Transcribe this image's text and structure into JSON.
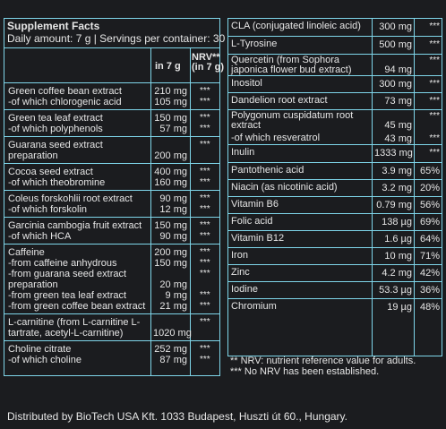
{
  "left": {
    "title": "Supplement Facts",
    "serving": "Daily amount: 7 g | Servings per container: 30",
    "col_amount": "in 7 g",
    "col_nrv": "NRV** (in 7 g)",
    "groups": [
      {
        "rows": [
          [
            "Green coffee bean extract",
            "210 mg",
            "***"
          ],
          [
            "-of which chlorogenic acid",
            "105 mg",
            "***"
          ]
        ]
      },
      {
        "rows": [
          [
            "Green tea leaf extract",
            "150 mg",
            "***"
          ],
          [
            "-of which polyphenols",
            "57 mg",
            "***"
          ]
        ]
      },
      {
        "rows": [
          [
            "Guarana seed extract preparation",
            "200 mg",
            "***"
          ]
        ]
      },
      {
        "rows": [
          [
            "Cocoa seed extract",
            "400 mg",
            "***"
          ],
          [
            "-of which theobromine",
            "160 mg",
            "***"
          ]
        ]
      },
      {
        "rows": [
          [
            "Coleus forskohlii root extract",
            "90 mg",
            "***"
          ],
          [
            "-of which forskolin",
            "12 mg",
            "***"
          ]
        ]
      },
      {
        "rows": [
          [
            "Garcinia cambogia fruit extract",
            "150 mg",
            "***"
          ],
          [
            "-of which HCA",
            "90 mg",
            "***"
          ]
        ]
      },
      {
        "rows": [
          [
            "Caffeine",
            "200 mg",
            "***"
          ],
          [
            "-from caffeine anhydrous",
            "150 mg",
            "***"
          ],
          [
            "-from guarana seed extract preparation",
            "20 mg",
            "***"
          ],
          [
            "-from green tea leaf extract",
            "9 mg",
            "***"
          ],
          [
            "-from green coffee bean extract",
            "21 mg",
            "***"
          ]
        ]
      },
      {
        "rows": [
          [
            "L-carnitine (from L-carnitine L-tartrate, acetyl-L-carnitine)",
            "1020 mg",
            "***"
          ]
        ]
      },
      {
        "rows": [
          [
            "Choline citrate",
            "252 mg",
            "***"
          ],
          [
            "-of which choline",
            "87 mg",
            "***"
          ]
        ]
      }
    ]
  },
  "right": {
    "rows": [
      [
        "CLA (conjugated linoleic acid)",
        "300 mg",
        "***"
      ],
      [
        "L-Tyrosine",
        "500 mg",
        "***"
      ],
      [
        "Quercetin (from Sophora japonica flower bud extract)",
        "94 mg",
        "***"
      ],
      [
        "Inositol",
        "300 mg",
        "***"
      ],
      [
        "Dandelion root extract",
        "73 mg",
        "***"
      ],
      [
        "Polygonum cuspidatum root extract",
        "45 mg",
        "***"
      ],
      [
        "-of which resveratrol",
        "43 mg",
        "***"
      ],
      [
        "Inulin",
        "1333 mg",
        "***"
      ],
      [
        "Pantothenic acid",
        "3.9 mg",
        "65%"
      ],
      [
        "Niacin (as nicotinic acid)",
        "3.2 mg",
        "20%"
      ],
      [
        "Vitamin B6",
        "0.79 mg",
        "56%"
      ],
      [
        "Folic acid",
        "138 µg",
        "69%"
      ],
      [
        "Vitamin B12",
        "1.6 µg",
        "64%"
      ],
      [
        "Iron",
        "10 mg",
        "71%"
      ],
      [
        "Zinc",
        "4.2 mg",
        "42%"
      ],
      [
        "Iodine",
        "53.3 µg",
        "36%"
      ],
      [
        "Chromium",
        "19 µg",
        "48%"
      ]
    ],
    "notes": [
      "** NRV: nutrient reference value for adults.",
      "*** No NRV has been established."
    ]
  },
  "footer": "Distributed by BioTech USA Kft. 1033 Budapest, Huszti út 60., Hungary."
}
